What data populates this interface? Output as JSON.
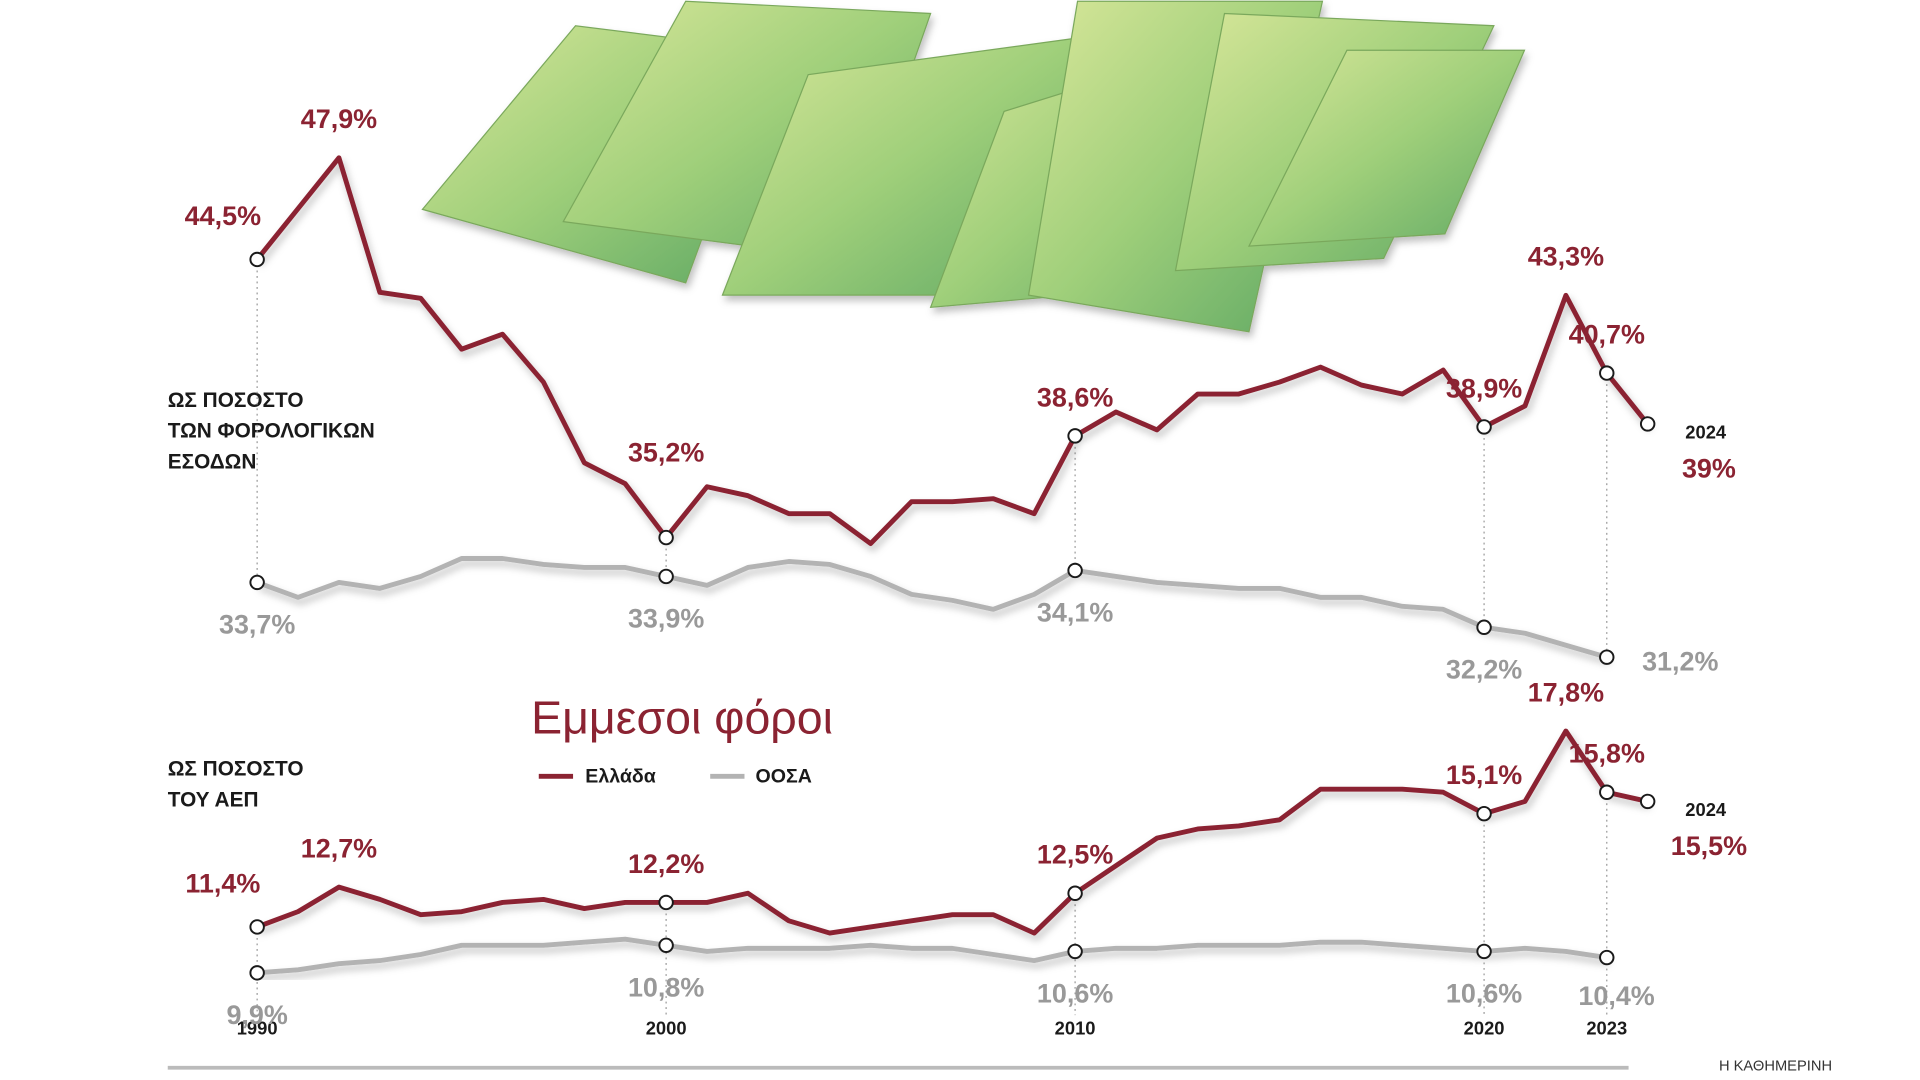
{
  "title": "Εμμεσοι φόροι",
  "source": "Η ΚΑΘΗΜΕΡΙΝΗ",
  "chart_data": [
    {
      "type": "line",
      "axis_label": [
        "ΩΣ ΠΟΣΟΣΤΟ",
        "ΤΩΝ ΦΟΡΟΛΟΓΙΚΩΝ",
        "ΕΣΟΔΩΝ"
      ],
      "x": [
        1990,
        1991,
        1992,
        1993,
        1994,
        1995,
        1996,
        1997,
        1998,
        1999,
        2000,
        2001,
        2002,
        2003,
        2004,
        2005,
        2006,
        2007,
        2008,
        2009,
        2010,
        2011,
        2012,
        2013,
        2014,
        2015,
        2016,
        2017,
        2018,
        2019,
        2020,
        2021,
        2022,
        2023,
        2024
      ],
      "xlim": [
        1990,
        2024
      ],
      "xticks": [
        1990,
        2000,
        2010,
        2020,
        2023
      ],
      "xtick_labels": false,
      "ylim": [
        30,
        49
      ],
      "series": [
        {
          "name": "Ελλάδα",
          "color": "#8b2332",
          "values": [
            44.5,
            46.2,
            47.9,
            43.4,
            43.2,
            41.5,
            42.0,
            40.4,
            37.7,
            37.0,
            35.2,
            36.9,
            36.6,
            36.0,
            36.0,
            35.0,
            36.4,
            36.4,
            36.5,
            36.0,
            38.6,
            39.4,
            38.8,
            40.0,
            40.0,
            40.4,
            40.9,
            40.3,
            40.0,
            40.8,
            38.9,
            39.6,
            43.3,
            40.7,
            39.0
          ],
          "value_labels": [
            "44,5%",
            null,
            "47,9%",
            null,
            null,
            null,
            null,
            null,
            null,
            null,
            "35,2%",
            null,
            null,
            null,
            null,
            null,
            null,
            null,
            null,
            null,
            "38,6%",
            null,
            null,
            null,
            null,
            null,
            null,
            null,
            null,
            null,
            "38,9%",
            null,
            "43,3%",
            "40,7%",
            "39%"
          ]
        },
        {
          "name": "ΟΟΣΑ",
          "color": "#b3b3b3",
          "values": [
            33.7,
            33.2,
            33.7,
            33.5,
            33.9,
            34.5,
            34.5,
            34.3,
            34.2,
            34.2,
            33.9,
            33.6,
            34.2,
            34.4,
            34.3,
            33.9,
            33.3,
            33.1,
            32.8,
            33.3,
            34.1,
            33.9,
            33.7,
            33.6,
            33.5,
            33.5,
            33.2,
            33.2,
            32.9,
            32.8,
            32.2,
            32.0,
            31.6,
            31.2,
            null
          ],
          "value_labels": [
            "33,7%",
            null,
            null,
            null,
            null,
            null,
            null,
            null,
            null,
            null,
            "33,9%",
            null,
            null,
            null,
            null,
            null,
            null,
            null,
            null,
            null,
            "34,1%",
            null,
            null,
            null,
            null,
            null,
            null,
            null,
            null,
            null,
            "32,2%",
            null,
            null,
            "31,2%",
            null
          ]
        }
      ]
    },
    {
      "type": "line",
      "axis_label": [
        "ΩΣ ΠΟΣΟΣΤΟ",
        "ΤΟΥ ΑΕΠ"
      ],
      "x": [
        1990,
        1991,
        1992,
        1993,
        1994,
        1995,
        1996,
        1997,
        1998,
        1999,
        2000,
        2001,
        2002,
        2003,
        2004,
        2005,
        2006,
        2007,
        2008,
        2009,
        2010,
        2011,
        2012,
        2013,
        2014,
        2015,
        2016,
        2017,
        2018,
        2019,
        2020,
        2021,
        2022,
        2023,
        2024
      ],
      "xlim": [
        1990,
        2024
      ],
      "xticks": [
        1990,
        2000,
        2010,
        2020,
        2023
      ],
      "xtick_labels": true,
      "ylim": [
        9,
        19
      ],
      "series": [
        {
          "name": "Ελλάδα",
          "color": "#8b2332",
          "values": [
            11.4,
            11.9,
            12.7,
            12.3,
            11.8,
            11.9,
            12.2,
            12.3,
            12.0,
            12.2,
            12.2,
            12.2,
            12.5,
            11.6,
            11.2,
            11.4,
            11.6,
            11.8,
            11.8,
            11.2,
            12.5,
            13.4,
            14.3,
            14.6,
            14.7,
            14.9,
            15.9,
            15.9,
            15.9,
            15.8,
            15.1,
            15.5,
            17.8,
            15.8,
            15.5
          ],
          "value_labels": [
            "11,4%",
            null,
            "12,7%",
            null,
            null,
            null,
            null,
            null,
            null,
            null,
            "12,2%",
            null,
            null,
            null,
            null,
            null,
            null,
            null,
            null,
            null,
            "12,5%",
            null,
            null,
            null,
            null,
            null,
            null,
            null,
            null,
            null,
            "15,1%",
            null,
            "17,8%",
            "15,8%",
            "15,5%"
          ]
        },
        {
          "name": "ΟΟΣΑ",
          "color": "#b3b3b3",
          "values": [
            9.9,
            10.0,
            10.2,
            10.3,
            10.5,
            10.8,
            10.8,
            10.8,
            10.9,
            11.0,
            10.8,
            10.6,
            10.7,
            10.7,
            10.7,
            10.8,
            10.7,
            10.7,
            10.5,
            10.3,
            10.6,
            10.7,
            10.7,
            10.8,
            10.8,
            10.8,
            10.9,
            10.9,
            10.8,
            10.7,
            10.6,
            10.7,
            10.6,
            10.4,
            null
          ],
          "value_labels": [
            "9,9%",
            null,
            null,
            null,
            null,
            null,
            null,
            null,
            null,
            null,
            "10,8%",
            null,
            null,
            null,
            null,
            null,
            null,
            null,
            null,
            null,
            "10,6%",
            null,
            null,
            null,
            null,
            null,
            null,
            null,
            null,
            null,
            "10,6%",
            null,
            null,
            "10,4%",
            null
          ]
        }
      ]
    }
  ]
}
